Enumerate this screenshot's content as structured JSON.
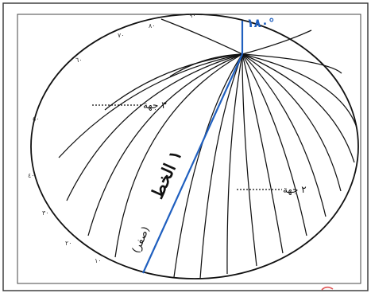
{
  "figure": {
    "top_label": "١٨٠°",
    "pole_degree_labels": [
      "٩٠",
      "٨٠",
      "٧٠",
      "٦٠"
    ],
    "left_degree_labels": [
      "٥٠",
      "٤٠",
      "٣٠",
      "٢٠",
      "١٠"
    ],
    "direction_top_left": "٣ جهة",
    "direction_right": "٢ جهة",
    "line_label_main": "١ الخط",
    "line_label_secondary": "(صفر)",
    "accent_color": "#1f5fbf"
  }
}
